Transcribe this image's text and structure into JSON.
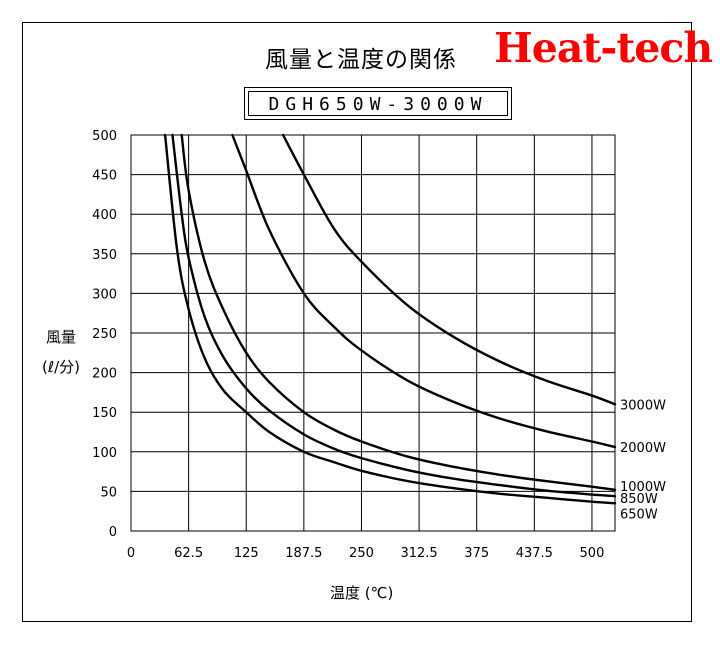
{
  "header": {
    "title": "風量と温度の関係",
    "brand": "Heat-tech",
    "model": "DGH650W-3000W"
  },
  "colors": {
    "brand": "#ff0000",
    "lines": "#000000",
    "grid": "#000000"
  },
  "chart_data": {
    "type": "line",
    "title": "風量と温度の関係",
    "subtitle": "DGH650W-3000W",
    "xlabel": "温度 (℃)",
    "ylabel_line1": "風量",
    "ylabel_line2": "(ℓ/分)",
    "xlim": [
      0,
      525
    ],
    "ylim": [
      0,
      500
    ],
    "x_ticks": [
      "0",
      "62.5",
      "125",
      "187.5",
      "250",
      "312.5",
      "375",
      "437.5",
      "500"
    ],
    "y_ticks": [
      "0",
      "50",
      "100",
      "150",
      "200",
      "250",
      "300",
      "350",
      "400",
      "450",
      "500"
    ],
    "grid": true,
    "series": [
      {
        "name": "3000W",
        "x": [
          165,
          187.5,
          220,
          250,
          300,
          350,
          400,
          450,
          500,
          525
        ],
        "y": [
          500,
          450,
          382,
          340,
          285,
          245,
          214,
          190,
          171,
          160
        ]
      },
      {
        "name": "2000W",
        "x": [
          110,
          125,
          150,
          187.5,
          220,
          250,
          300,
          350,
          400,
          450,
          500,
          525
        ],
        "y": [
          500,
          455,
          380,
          300,
          258,
          228,
          190,
          163,
          142,
          126,
          113,
          106
        ]
      },
      {
        "name": "1000W",
        "x": [
          55,
          62.5,
          80,
          100,
          125,
          150,
          187.5,
          220,
          250,
          300,
          350,
          400,
          450,
          500,
          525
        ],
        "y": [
          500,
          430,
          340,
          280,
          225,
          188,
          150,
          128,
          113,
          94,
          81,
          71,
          63,
          56,
          52
        ]
      },
      {
        "name": "850W",
        "x": [
          45,
          55,
          62.5,
          80,
          100,
          125,
          150,
          187.5,
          220,
          250,
          300,
          350,
          400,
          450,
          500,
          525
        ],
        "y": [
          500,
          400,
          345,
          270,
          220,
          180,
          152,
          122,
          104,
          92,
          77,
          66,
          58,
          51,
          46,
          44
        ]
      },
      {
        "name": "650W",
        "x": [
          37,
          50,
          62.5,
          80,
          100,
          125,
          150,
          187.5,
          220,
          250,
          300,
          350,
          400,
          450,
          500,
          525
        ],
        "y": [
          500,
          355,
          280,
          218,
          178,
          150,
          125,
          100,
          87,
          76,
          63,
          54,
          47,
          42,
          37,
          35
        ]
      }
    ]
  }
}
